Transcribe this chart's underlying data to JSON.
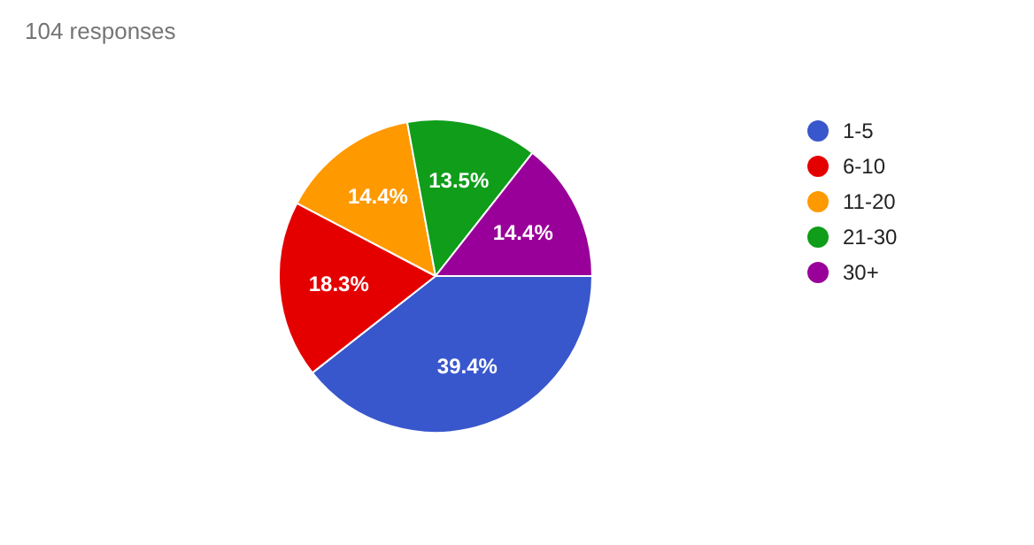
{
  "chart_data": {
    "type": "pie",
    "title": "104 responses",
    "categories": [
      "1-5",
      "6-10",
      "11-20",
      "21-30",
      "30+"
    ],
    "values": [
      39.4,
      18.3,
      14.4,
      13.5,
      14.4
    ],
    "value_labels": [
      "39.4%",
      "18.3%",
      "14.4%",
      "13.5%",
      "14.4%"
    ],
    "colors": [
      "#3957cc",
      "#e50000",
      "#ff9900",
      "#0f9d1a",
      "#990099"
    ],
    "legend": "right"
  }
}
